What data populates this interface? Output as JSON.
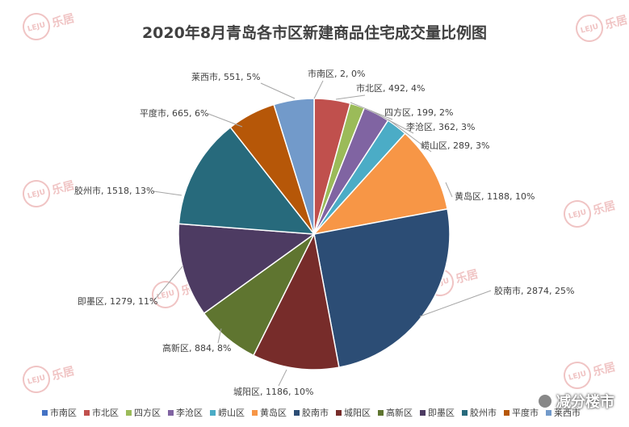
{
  "chart_data": {
    "type": "pie",
    "title": "2020年8月青岛各市区新建商品住宅成交量比例图",
    "slices": [
      {
        "name": "市南区",
        "value": 2,
        "percent": "0%",
        "color": "#4472c4"
      },
      {
        "name": "市北区",
        "value": 492,
        "percent": "4%",
        "color": "#c0504d"
      },
      {
        "name": "四方区",
        "value": 199,
        "percent": "2%",
        "color": "#9bbb59"
      },
      {
        "name": "李沧区",
        "value": 362,
        "percent": "3%",
        "color": "#8064a2"
      },
      {
        "name": "崂山区",
        "value": 289,
        "percent": "3%",
        "color": "#4bacc6"
      },
      {
        "name": "黄岛区",
        "value": 1188,
        "percent": "10%",
        "color": "#f79646"
      },
      {
        "name": "胶南市",
        "value": 2874,
        "percent": "25%",
        "color": "#2c4d75"
      },
      {
        "name": "城阳区",
        "value": 1186,
        "percent": "10%",
        "color": "#772c2a"
      },
      {
        "name": "高新区",
        "value": 884,
        "percent": "8%",
        "color": "#5f7530"
      },
      {
        "name": "即墨区",
        "value": 1279,
        "percent": "11%",
        "color": "#4d3b62"
      },
      {
        "name": "胶州市",
        "value": 1518,
        "percent": "13%",
        "color": "#276a7c"
      },
      {
        "name": "平度市",
        "value": 665,
        "percent": "6%",
        "color": "#b65708"
      },
      {
        "name": "莱西市",
        "value": 551,
        "percent": "5%",
        "color": "#729aca"
      }
    ],
    "legend_position": "bottom"
  },
  "watermark": {
    "logo_text": "LEJU",
    "brand_text": "乐居"
  },
  "footer_mark": {
    "text": "减分楼市",
    "icon": "wechat-icon"
  }
}
